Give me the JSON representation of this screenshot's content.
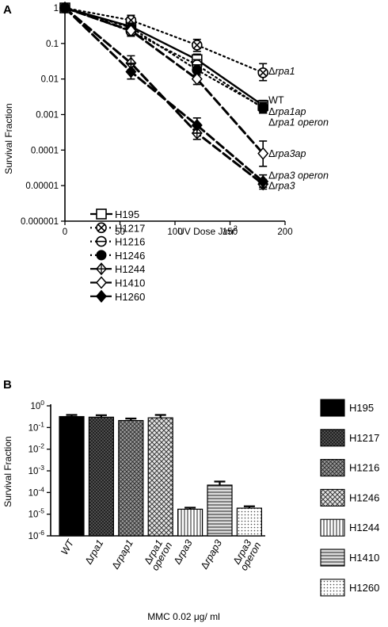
{
  "figure_colors": {
    "ink": "#000000",
    "background": "#ffffff",
    "hollow": "#ffffff",
    "bar_pattern_gray": "#8c8c8c"
  },
  "chart_data": [
    {
      "panel": "A",
      "type": "line",
      "xlabel": "UV Dose J/m",
      "xlabel_sup": "2",
      "ylabel": "Survival Fraction",
      "xlim": [
        0,
        200
      ],
      "ylim": [
        1e-06,
        1
      ],
      "yscale": "log",
      "x_ticks": [
        {
          "v": 0,
          "label": "0"
        },
        {
          "v": 50,
          "label": "50"
        },
        {
          "v": 100,
          "label": "100"
        },
        {
          "v": 150,
          "label": "150"
        },
        {
          "v": 200,
          "label": "200"
        }
      ],
      "y_ticks": [
        {
          "v": 1,
          "label": "1"
        },
        {
          "v": 0.1,
          "label": "0.1"
        },
        {
          "v": 0.01,
          "label": "0.01"
        },
        {
          "v": 0.001,
          "label": "0.001"
        },
        {
          "v": 0.0001,
          "label": "0.0001"
        },
        {
          "v": 1e-05,
          "label": "0.00001"
        },
        {
          "v": 1e-06,
          "label": "0.000001"
        }
      ],
      "x": [
        0,
        60,
        120,
        180
      ],
      "series": [
        {
          "name": "H195",
          "marker": "square-open",
          "line": "solid",
          "values": [
            1,
            0.3,
            0.035,
            0.0018
          ],
          "err_hi": [
            1.05,
            0.42,
            0.05,
            0.0025
          ],
          "err_lo": [
            0.95,
            0.2,
            0.025,
            0.0012
          ]
        },
        {
          "name": "H1217",
          "marker": "circle-x",
          "line": "dotted",
          "values": [
            1,
            0.45,
            0.09,
            0.015
          ],
          "err_hi": [
            1.05,
            0.62,
            0.13,
            0.027
          ],
          "err_lo": [
            0.95,
            0.32,
            0.06,
            0.009
          ]
        },
        {
          "name": "H1216",
          "marker": "circle-minus",
          "line": "dotted",
          "values": [
            1,
            0.22,
            0.025,
            0.0015
          ],
          "err_hi": [
            1.05,
            0.3,
            0.035,
            0.0021
          ],
          "err_lo": [
            0.95,
            0.16,
            0.018,
            0.0011
          ]
        },
        {
          "name": "H1246",
          "marker": "circle-filled",
          "line": "dotted",
          "values": [
            1,
            0.28,
            0.018,
            0.0016
          ],
          "err_hi": [
            1.05,
            0.37,
            0.025,
            0.0022
          ],
          "err_lo": [
            0.95,
            0.21,
            0.013,
            0.0011
          ]
        },
        {
          "name": "H1244",
          "marker": "diamond-cross",
          "line": "dashed",
          "values": [
            1,
            0.028,
            0.0003,
            1.1e-05
          ],
          "err_hi": [
            1.05,
            0.045,
            0.00045,
            1.5e-05
          ],
          "err_lo": [
            0.95,
            0.018,
            0.0002,
            8e-06
          ]
        },
        {
          "name": "H1410",
          "marker": "diamond-open",
          "line": "dashed",
          "values": [
            1,
            0.23,
            0.01,
            8e-05
          ],
          "err_hi": [
            1.05,
            0.31,
            0.015,
            0.00018
          ],
          "err_lo": [
            0.95,
            0.17,
            0.007,
            3.5e-05
          ]
        },
        {
          "name": "H1260",
          "marker": "diamond-filled",
          "line": "dashed",
          "values": [
            1,
            0.016,
            0.0005,
            1.3e-05
          ],
          "err_hi": [
            1.05,
            0.026,
            0.0008,
            2e-05
          ],
          "err_lo": [
            0.95,
            0.01,
            0.0003,
            9e-06
          ]
        }
      ],
      "annotations": [
        {
          "text": "Δrpa1",
          "italic": true,
          "x": 185,
          "y": 0.0165
        },
        {
          "text": "WT",
          "italic": false,
          "x": 185,
          "y": 0.0025
        },
        {
          "text": "Δrpa1ap",
          "italic": true,
          "x": 185,
          "y": 0.0012
        },
        {
          "text": "Δrpa1 operon",
          "italic": true,
          "x": 185,
          "y": 0.0006
        },
        {
          "text": "Δrpa3ap",
          "italic": true,
          "x": 185,
          "y": 7.9e-05
        },
        {
          "text": "Δrpa3 operon",
          "italic": true,
          "x": 185,
          "y": 1.9e-05
        },
        {
          "text": "Δrpa3",
          "italic": true,
          "x": 185,
          "y": 9.8e-06
        }
      ],
      "legend_position": "bottom-left"
    },
    {
      "panel": "B",
      "type": "bar",
      "ylabel": "Survival Fraction",
      "xlabel": "MMC 0.02 μg/ ml",
      "yscale": "log",
      "ylim": [
        1e-06,
        1
      ],
      "y_ticks": [
        {
          "v": 1,
          "base": "10",
          "exp": "0"
        },
        {
          "v": 0.1,
          "base": "10",
          "exp": "-1"
        },
        {
          "v": 0.01,
          "base": "10",
          "exp": "-2"
        },
        {
          "v": 0.001,
          "base": "10",
          "exp": "-3"
        },
        {
          "v": 0.0001,
          "base": "10",
          "exp": "-4"
        },
        {
          "v": 1e-05,
          "base": "10",
          "exp": "-5"
        },
        {
          "v": 1e-06,
          "base": "10",
          "exp": "-6"
        }
      ],
      "categories": [
        {
          "main": "WT",
          "prefix": "",
          "sub": ""
        },
        {
          "main": "rpa1",
          "prefix": "Δ",
          "sub": ""
        },
        {
          "main": "rpap1",
          "prefix": "Δ",
          "sub": ""
        },
        {
          "main": "rpa1",
          "prefix": "Δ",
          "sub": "operon"
        },
        {
          "main": "rpa3",
          "prefix": "Δ",
          "sub": ""
        },
        {
          "main": "rpap3",
          "prefix": "Δ",
          "sub": ""
        },
        {
          "main": "rpa3",
          "prefix": "Δ",
          "sub": "operon"
        }
      ],
      "series": [
        {
          "name": "H195",
          "pattern": "solid",
          "value": 0.32,
          "err_hi": 0.38
        },
        {
          "name": "H1217",
          "pattern": "cross-dense",
          "value": 0.3,
          "err_hi": 0.37
        },
        {
          "name": "H1216",
          "pattern": "cross-medium",
          "value": 0.21,
          "err_hi": 0.26
        },
        {
          "name": "H1246",
          "pattern": "cross-light",
          "value": 0.28,
          "err_hi": 0.38
        },
        {
          "name": "H1244",
          "pattern": "vertical-lines",
          "value": 1.7e-05,
          "err_hi": 2e-05
        },
        {
          "name": "H1410",
          "pattern": "horizontal-lines",
          "value": 0.00022,
          "err_hi": 0.00032
        },
        {
          "name": "H1260",
          "pattern": "dots",
          "value": 1.9e-05,
          "err_hi": 2.3e-05
        }
      ],
      "legend_position": "right"
    }
  ]
}
